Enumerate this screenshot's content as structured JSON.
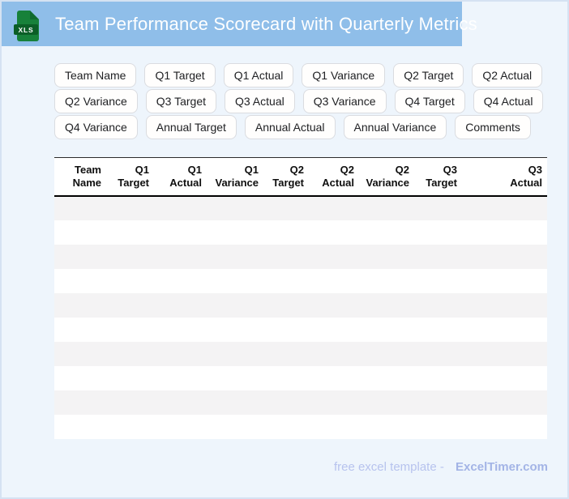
{
  "banner": {
    "title": "Team Performance Scorecard with Quarterly Metrics",
    "icon_label": "XLS",
    "banner_color": "#8fbee9",
    "icon_color": "#17813a"
  },
  "chips": [
    "Team Name",
    "Q1 Target",
    "Q1 Actual",
    "Q1 Variance",
    "Q2 Target",
    "Q2 Actual",
    "Q2 Variance",
    "Q3 Target",
    "Q3 Actual",
    "Q3 Variance",
    "Q4 Target",
    "Q4 Actual",
    "Q4 Variance",
    "Annual Target",
    "Annual Actual",
    "Annual Variance",
    "Comments"
  ],
  "table": {
    "headers": [
      "Team\nName",
      "Q1\nTarget",
      "Q1\nActual",
      "Q1\nVariance",
      "Q2\nTarget",
      "Q2\nActual",
      "Q2\nVariance",
      "Q3\nTarget",
      "Q3\nActual"
    ],
    "row_count": 10,
    "stripe_color": "#f4f3f4"
  },
  "footer": {
    "text": "free excel template -",
    "brand": "ExcelTimer.com"
  }
}
